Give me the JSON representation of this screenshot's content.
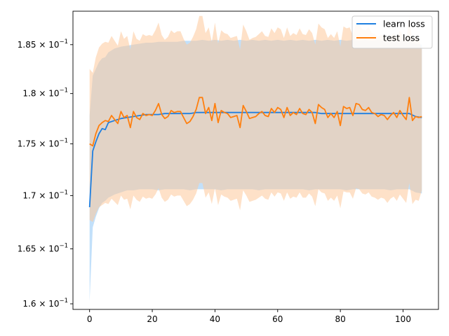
{
  "chart_data": {
    "type": "line",
    "title": "",
    "xlabel": "",
    "ylabel": "",
    "yscale": "log",
    "xlim": [
      -5.3,
      111.3
    ],
    "ylim": [
      0.1595,
      0.1885
    ],
    "grid": false,
    "legend_position": "top-right",
    "x_ticks": [
      0,
      20,
      40,
      60,
      80,
      100
    ],
    "x_tick_labels": [
      "0",
      "20",
      "40",
      "60",
      "80",
      "100"
    ],
    "y_ticks": [
      0.16,
      0.165,
      0.17,
      0.175,
      0.18,
      0.185
    ],
    "y_tick_labels": [
      {
        "mant": "1.6",
        "exp": "−1"
      },
      {
        "mant": "1.65",
        "exp": "−1"
      },
      {
        "mant": "1.7",
        "exp": "−1"
      },
      {
        "mant": "1.75",
        "exp": "−1"
      },
      {
        "mant": "1.8",
        "exp": "−1"
      },
      {
        "mant": "1.85",
        "exp": "−1"
      }
    ],
    "series": [
      {
        "name": "learn loss",
        "color": "#1f7fe0",
        "band_color": "#8fc6f5",
        "x": [
          0,
          1,
          2,
          3,
          4,
          5,
          6,
          8,
          10,
          12,
          14,
          16,
          18,
          20,
          22,
          24,
          26,
          28,
          30,
          32,
          34,
          36,
          38,
          40,
          42,
          44,
          46,
          48,
          50,
          52,
          54,
          56,
          58,
          60,
          62,
          64,
          66,
          68,
          70,
          72,
          74,
          76,
          78,
          80,
          82,
          84,
          86,
          88,
          90,
          92,
          94,
          96,
          98,
          100,
          102,
          104,
          106
        ],
        "values": [
          0.1689,
          0.1743,
          0.1752,
          0.176,
          0.1765,
          0.1764,
          0.1771,
          0.1773,
          0.1775,
          0.1776,
          0.1777,
          0.1778,
          0.1779,
          0.1779,
          0.1779,
          0.178,
          0.178,
          0.178,
          0.178,
          0.178,
          0.1781,
          0.1781,
          0.1781,
          0.1781,
          0.1781,
          0.1781,
          0.1781,
          0.1781,
          0.1781,
          0.1781,
          0.1781,
          0.1781,
          0.1781,
          0.1781,
          0.1781,
          0.1781,
          0.1781,
          0.1781,
          0.1781,
          0.1781,
          0.178,
          0.178,
          0.178,
          0.178,
          0.178,
          0.178,
          0.178,
          0.178,
          0.178,
          0.178,
          0.178,
          0.178,
          0.178,
          0.178,
          0.178,
          0.1777,
          0.1776
        ],
        "band_lower": [
          0.1602,
          0.167,
          0.168,
          0.1688,
          0.1693,
          0.1695,
          0.1698,
          0.1701,
          0.1703,
          0.1705,
          0.1705,
          0.1706,
          0.1706,
          0.1706,
          0.1705,
          0.1706,
          0.1706,
          0.1706,
          0.1706,
          0.1705,
          0.1706,
          0.1706,
          0.1706,
          0.1706,
          0.1705,
          0.1706,
          0.1706,
          0.1706,
          0.1706,
          0.1706,
          0.1705,
          0.1706,
          0.1706,
          0.1706,
          0.1706,
          0.1706,
          0.1706,
          0.1706,
          0.1705,
          0.1706,
          0.1706,
          0.1706,
          0.1706,
          0.1706,
          0.1705,
          0.1706,
          0.1706,
          0.1706,
          0.1706,
          0.1706,
          0.1706,
          0.1705,
          0.1706,
          0.1706,
          0.1706,
          0.1703,
          0.1702
        ],
        "band_upper": [
          0.1778,
          0.1818,
          0.1825,
          0.1832,
          0.1836,
          0.1837,
          0.1842,
          0.1846,
          0.1848,
          0.1849,
          0.185,
          0.1851,
          0.1852,
          0.1852,
          0.1853,
          0.1853,
          0.1853,
          0.1853,
          0.1854,
          0.1854,
          0.1854,
          0.1855,
          0.1854,
          0.1855,
          0.1854,
          0.1855,
          0.1854,
          0.1855,
          0.1854,
          0.1855,
          0.1854,
          0.1855,
          0.1854,
          0.1855,
          0.1854,
          0.1855,
          0.1854,
          0.1855,
          0.1854,
          0.1855,
          0.1854,
          0.1855,
          0.1854,
          0.1855,
          0.1854,
          0.1855,
          0.1854,
          0.1855,
          0.1854,
          0.1855,
          0.1854,
          0.1854,
          0.1854,
          0.1854,
          0.1854,
          0.1851,
          0.185
        ]
      },
      {
        "name": "test loss",
        "color": "#ff7f0e",
        "band_color": "#fdc89a",
        "x": [
          0,
          1,
          2,
          3,
          4,
          5,
          6,
          7,
          8,
          9,
          10,
          11,
          12,
          13,
          14,
          15,
          16,
          17,
          18,
          19,
          20,
          21,
          22,
          23,
          24,
          25,
          26,
          27,
          28,
          29,
          30,
          31,
          32,
          33,
          34,
          35,
          36,
          37,
          38,
          39,
          40,
          41,
          42,
          43,
          44,
          45,
          46,
          47,
          48,
          49,
          50,
          51,
          52,
          53,
          54,
          55,
          56,
          57,
          58,
          59,
          60,
          61,
          62,
          63,
          64,
          65,
          66,
          67,
          68,
          69,
          70,
          71,
          72,
          73,
          74,
          75,
          76,
          77,
          78,
          79,
          80,
          81,
          82,
          83,
          84,
          85,
          86,
          87,
          88,
          89,
          90,
          91,
          92,
          93,
          94,
          95,
          96,
          97,
          98,
          99,
          100,
          101,
          102,
          103,
          104,
          105,
          106
        ],
        "values": [
          0.175,
          0.1748,
          0.176,
          0.1768,
          0.1771,
          0.1773,
          0.1772,
          0.1778,
          0.1774,
          0.177,
          0.1782,
          0.1776,
          0.1778,
          0.1766,
          0.1782,
          0.1776,
          0.1774,
          0.178,
          0.1778,
          0.1779,
          0.1778,
          0.1783,
          0.179,
          0.1779,
          0.1775,
          0.1777,
          0.1783,
          0.1781,
          0.1782,
          0.1782,
          0.1776,
          0.177,
          0.1772,
          0.1777,
          0.1784,
          0.1796,
          0.1796,
          0.178,
          0.1786,
          0.1773,
          0.179,
          0.1771,
          0.1783,
          0.1781,
          0.178,
          0.1776,
          0.1777,
          0.1778,
          0.1766,
          0.1788,
          0.1782,
          0.1775,
          0.1776,
          0.1777,
          0.178,
          0.1782,
          0.1778,
          0.1777,
          0.1785,
          0.1781,
          0.1786,
          0.1784,
          0.1776,
          0.1786,
          0.1778,
          0.1781,
          0.1779,
          0.1785,
          0.178,
          0.1779,
          0.1784,
          0.1781,
          0.177,
          0.1789,
          0.1786,
          0.1784,
          0.1776,
          0.178,
          0.1776,
          0.1782,
          0.1768,
          0.1787,
          0.1785,
          0.1786,
          0.1778,
          0.179,
          0.1789,
          0.1784,
          0.1783,
          0.1786,
          0.1781,
          0.178,
          0.1777,
          0.1779,
          0.1778,
          0.1774,
          0.1778,
          0.1781,
          0.1776,
          0.1783,
          0.1778,
          0.1774,
          0.1796,
          0.1773,
          0.1777,
          0.1776,
          0.1777
        ],
        "band_lower": [
          0.1677,
          0.1675,
          0.1683,
          0.1689,
          0.1691,
          0.1693,
          0.1692,
          0.1697,
          0.1694,
          0.1691,
          0.17,
          0.1696,
          0.1697,
          0.1687,
          0.17,
          0.1696,
          0.1694,
          0.1699,
          0.1697,
          0.1698,
          0.1697,
          0.1701,
          0.1707,
          0.1698,
          0.1694,
          0.1696,
          0.1701,
          0.1699,
          0.17,
          0.17,
          0.1695,
          0.169,
          0.1692,
          0.1696,
          0.1702,
          0.1712,
          0.1712,
          0.1698,
          0.1703,
          0.1692,
          0.1707,
          0.1691,
          0.1701,
          0.1699,
          0.1698,
          0.1695,
          0.1696,
          0.1697,
          0.1686,
          0.1705,
          0.17,
          0.1694,
          0.1695,
          0.1696,
          0.1698,
          0.17,
          0.1697,
          0.1696,
          0.1703,
          0.1699,
          0.1703,
          0.1702,
          0.1695,
          0.1703,
          0.1697,
          0.1699,
          0.1698,
          0.1703,
          0.1698,
          0.1698,
          0.1702,
          0.1699,
          0.169,
          0.1706,
          0.1703,
          0.1702,
          0.1695,
          0.1698,
          0.1695,
          0.17,
          0.1688,
          0.1704,
          0.1703,
          0.1703,
          0.1697,
          0.1707,
          0.1706,
          0.1702,
          0.1701,
          0.1703,
          0.1699,
          0.1698,
          0.1696,
          0.1698,
          0.1697,
          0.1693,
          0.1697,
          0.1699,
          0.1695,
          0.1701,
          0.1697,
          0.1693,
          0.1712,
          0.1692,
          0.1696,
          0.1695,
          0.1705
        ],
        "band_upper": [
          0.1825,
          0.1821,
          0.1837,
          0.1847,
          0.1851,
          0.1853,
          0.1852,
          0.1859,
          0.1854,
          0.1849,
          0.1864,
          0.1856,
          0.1859,
          0.1845,
          0.1864,
          0.1856,
          0.1854,
          0.1861,
          0.1859,
          0.186,
          0.1859,
          0.1865,
          0.1873,
          0.186,
          0.1855,
          0.1858,
          0.1865,
          0.1862,
          0.1864,
          0.1864,
          0.1856,
          0.185,
          0.1852,
          0.1858,
          0.1866,
          0.188,
          0.188,
          0.1862,
          0.1868,
          0.1853,
          0.1873,
          0.1851,
          0.1865,
          0.1862,
          0.1861,
          0.1857,
          0.1858,
          0.1859,
          0.1845,
          0.1871,
          0.1864,
          0.1855,
          0.1857,
          0.1858,
          0.1861,
          0.1864,
          0.1859,
          0.1858,
          0.1867,
          0.1862,
          0.1868,
          0.1866,
          0.1857,
          0.1868,
          0.1859,
          0.1862,
          0.186,
          0.1867,
          0.1861,
          0.186,
          0.1866,
          0.1862,
          0.185,
          0.1872,
          0.1868,
          0.1866,
          0.1857,
          0.1861,
          0.1857,
          0.1864,
          0.1848,
          0.1869,
          0.1867,
          0.1868,
          0.1859,
          0.1873,
          0.1871,
          0.1866,
          0.1865,
          0.1868,
          0.1862,
          0.1861,
          0.1858,
          0.186,
          0.1859,
          0.1854,
          0.1859,
          0.1862,
          0.1857,
          0.1865,
          0.1859,
          0.1854,
          0.188,
          0.1853,
          0.1858,
          0.1856,
          0.1845
        ]
      }
    ]
  }
}
